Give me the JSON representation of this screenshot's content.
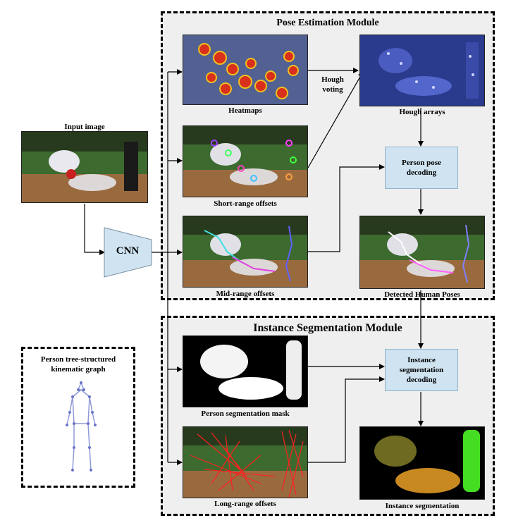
{
  "modules": {
    "pose": {
      "title": "Pose Estimation Module"
    },
    "segmentation": {
      "title": "Instance Segmentation Module"
    }
  },
  "input": {
    "label": "Input image"
  },
  "cnn": {
    "label": "CNN"
  },
  "pose_outputs": {
    "heatmaps": "Heatmaps",
    "short_range": "Short-range offsets",
    "mid_range": "Mid-range offsets",
    "hough_voting": [
      "Hough",
      "voting"
    ],
    "hough_arrays": "Hough arrays",
    "pose_decoding": [
      "Person pose",
      "decoding"
    ],
    "detected_poses": "Detected Human Poses"
  },
  "seg_outputs": {
    "mask": "Person segmentation mask",
    "long_range": "Long-range offsets",
    "seg_decoding": [
      "Instance",
      "segmentation",
      "decoding"
    ],
    "instance_seg": "Instance segmentation"
  },
  "kinematic": {
    "title": [
      "Person tree-structured",
      "kinematic graph"
    ]
  },
  "colors": {
    "module_bg": "#efefef",
    "process_box": "#cfe3f1",
    "cnn_fill": "#cfe3f1",
    "hough_bg": "#2a3a8c",
    "heat_red": "#d8301c",
    "long_range_red": "#ff2020",
    "instance_green": "#44dd22",
    "instance_orange": "#c88a20",
    "instance_olive": "#6f6a22"
  }
}
